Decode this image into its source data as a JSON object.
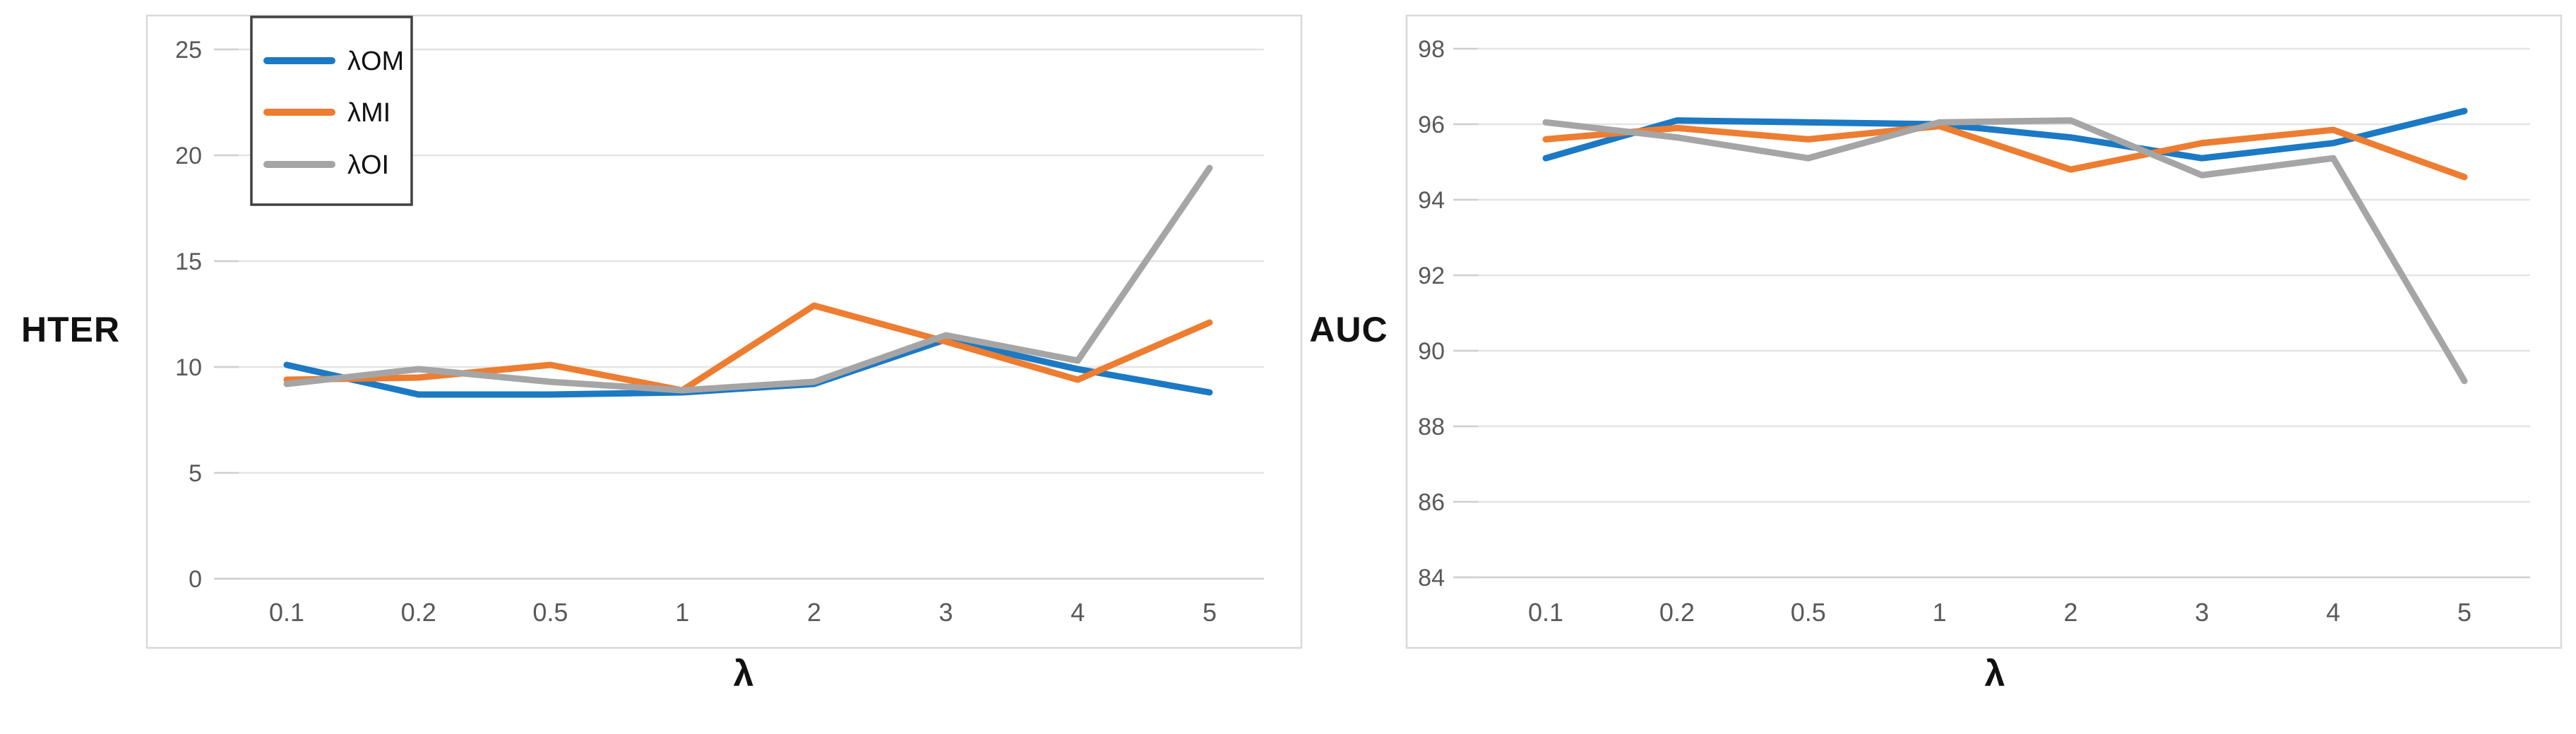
{
  "colors": {
    "blue": "#1C79C4",
    "orange": "#ED7D31",
    "gray": "#A5A5A5",
    "grid": "#E4E4E4",
    "axis": "#CFCFCF",
    "panel_border": "#D9D9D9",
    "tick_label": "#595959",
    "legend_border": "#404040",
    "legend_text": "#111111"
  },
  "chart_data": [
    {
      "id": "hter",
      "type": "line",
      "side_label": "HTER",
      "xlabel": "λ",
      "categories": [
        "0.1",
        "0.2",
        "0.5",
        "1",
        "2",
        "3",
        "4",
        "5"
      ],
      "y_ticks": [
        0,
        5,
        10,
        15,
        20,
        25
      ],
      "ylim": [
        0,
        25
      ],
      "grid": true,
      "legend": {
        "position": "top-left",
        "items": [
          "λOM",
          "λMI",
          "λOI"
        ]
      },
      "series": [
        {
          "name": "λOM",
          "color": "blue",
          "values": [
            10.1,
            8.7,
            8.7,
            8.8,
            9.2,
            11.3,
            9.9,
            8.8
          ]
        },
        {
          "name": "λMI",
          "color": "orange",
          "values": [
            9.4,
            9.5,
            10.1,
            8.9,
            12.9,
            11.2,
            9.4,
            12.1
          ]
        },
        {
          "name": "λOI",
          "color": "gray",
          "values": [
            9.2,
            9.9,
            9.3,
            8.9,
            9.3,
            11.5,
            10.3,
            19.4
          ]
        }
      ]
    },
    {
      "id": "auc",
      "type": "line",
      "side_label": "AUC",
      "xlabel": "λ",
      "categories": [
        "0.1",
        "0.2",
        "0.5",
        "1",
        "2",
        "3",
        "4",
        "5"
      ],
      "y_ticks": [
        84,
        86,
        88,
        90,
        92,
        94,
        96,
        98
      ],
      "ylim": [
        84,
        98
      ],
      "grid": true,
      "legend": null,
      "series": [
        {
          "name": "λOM",
          "color": "blue",
          "values": [
            95.1,
            96.1,
            96.05,
            96.0,
            95.65,
            95.1,
            95.5,
            96.35
          ]
        },
        {
          "name": "λMI",
          "color": "orange",
          "values": [
            95.6,
            95.9,
            95.6,
            95.95,
            94.8,
            95.5,
            95.85,
            94.6
          ]
        },
        {
          "name": "λOI",
          "color": "gray",
          "values": [
            96.05,
            95.65,
            95.1,
            96.05,
            96.1,
            94.65,
            95.1,
            89.2
          ]
        }
      ]
    }
  ]
}
